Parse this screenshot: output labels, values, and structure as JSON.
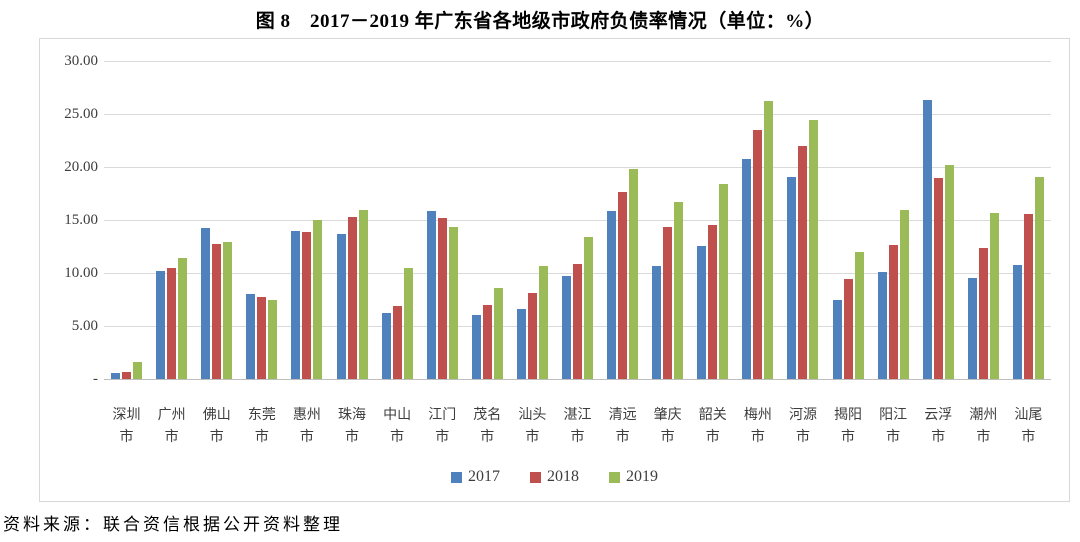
{
  "title": "图 8　2017－2019 年广东省各地级市政府负债率情况（单位：%）",
  "source_note": "资料来源：联合资信根据公开资料整理",
  "colors": {
    "series_2017": "#4F81BD",
    "series_2018": "#C0504D",
    "series_2019": "#9BBB59",
    "gridline": "#DADADA",
    "axis_line": "#BEBEBE",
    "frame_border": "#D8D8D8",
    "tick_text": "#3D3D3D",
    "title_text": "#000000"
  },
  "chart_data": {
    "type": "bar",
    "title": "图 8　2017－2019 年广东省各地级市政府负债率情况（单位：%）",
    "unit": "%",
    "grid": true,
    "legend_position": "bottom",
    "ylim": [
      0,
      30
    ],
    "yticks": [
      {
        "value": 30,
        "label": "30.00"
      },
      {
        "value": 25,
        "label": "25.00"
      },
      {
        "value": 20,
        "label": "20.00"
      },
      {
        "value": 15,
        "label": "15.00"
      },
      {
        "value": 10,
        "label": "10.00"
      },
      {
        "value": 5,
        "label": "5.00"
      },
      {
        "value": 0,
        "label": "-"
      }
    ],
    "categories": [
      "深圳市",
      "广州市",
      "佛山市",
      "东莞市",
      "惠州市",
      "珠海市",
      "中山市",
      "江门市",
      "茂名市",
      "汕头市",
      "湛江市",
      "清远市",
      "肇庆市",
      "韶关市",
      "梅州市",
      "河源市",
      "揭阳市",
      "阳江市",
      "云浮市",
      "潮州市",
      "汕尾市"
    ],
    "series": [
      {
        "name": "2017",
        "color": "#4F81BD",
        "values": [
          0.6,
          10.2,
          14.2,
          8.0,
          13.9,
          13.7,
          6.2,
          15.8,
          6.0,
          6.6,
          9.7,
          15.8,
          10.6,
          12.5,
          20.7,
          19.0,
          7.4,
          10.1,
          26.3,
          9.5,
          10.7
        ]
      },
      {
        "name": "2018",
        "color": "#C0504D",
        "values": [
          0.7,
          10.5,
          12.7,
          7.7,
          13.8,
          15.3,
          6.9,
          15.2,
          7.0,
          8.1,
          10.8,
          17.6,
          14.3,
          14.5,
          23.5,
          21.9,
          9.4,
          12.6,
          18.9,
          12.3,
          15.5
        ]
      },
      {
        "name": "2019",
        "color": "#9BBB59",
        "values": [
          1.6,
          11.4,
          12.9,
          7.4,
          15.0,
          15.9,
          10.5,
          14.3,
          8.6,
          10.6,
          13.4,
          19.8,
          16.7,
          18.4,
          26.2,
          24.4,
          12.0,
          15.9,
          20.2,
          15.6,
          19.0
        ]
      }
    ]
  }
}
